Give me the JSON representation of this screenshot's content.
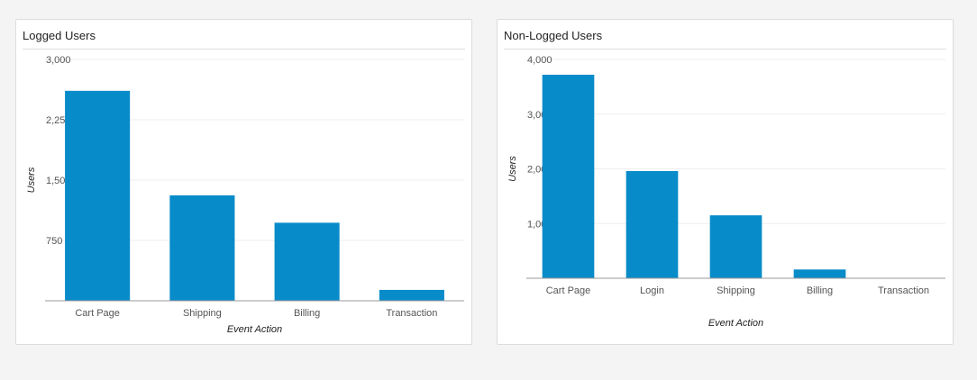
{
  "panels": [
    {
      "title": "Logged Users"
    },
    {
      "title": "Non-Logged Users"
    }
  ],
  "colors": {
    "bar": "#078bc9",
    "grid": "#eeeeee",
    "baseline": "#999999",
    "tick_text": "#555555",
    "axis_title": "#222222"
  },
  "chart_data": [
    {
      "type": "bar",
      "title": "Logged Users",
      "xlabel": "Event Action",
      "ylabel": "Users",
      "categories": [
        "Cart Page",
        "Shipping",
        "Billing",
        "Transaction"
      ],
      "values": [
        2610,
        1310,
        970,
        135
      ],
      "ylim": [
        0,
        3000
      ],
      "yticks": [
        0,
        750,
        1500,
        2250,
        3000
      ],
      "ytick_labels": [
        "",
        "750",
        "1,500",
        "2,250",
        "3,000"
      ],
      "grid": true
    },
    {
      "type": "bar",
      "title": "Non-Logged Users",
      "xlabel": "Event Action",
      "ylabel": "Users",
      "categories": [
        "Cart Page",
        "Login",
        "Shipping",
        "Billing",
        "Transaction"
      ],
      "values": [
        3720,
        1960,
        1150,
        160,
        0
      ],
      "ylim": [
        0,
        4000
      ],
      "yticks": [
        0,
        1000,
        2000,
        3000,
        4000
      ],
      "ytick_labels": [
        "",
        "1,000",
        "2,000",
        "3,000",
        "4,000"
      ],
      "grid": true
    }
  ]
}
